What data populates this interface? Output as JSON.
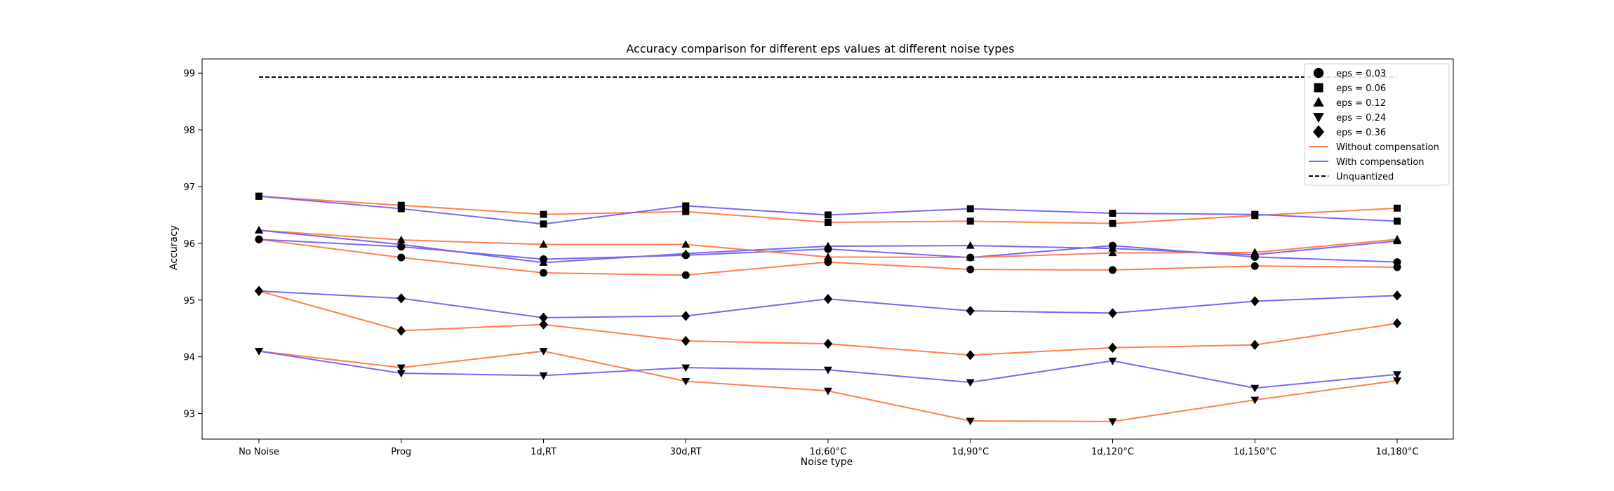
{
  "chart_data": {
    "type": "line",
    "title": "Accuracy comparison for different eps values at different noise types",
    "xlabel": "Noise type",
    "ylabel": "Accuracy",
    "categories": [
      "No Noise",
      "Prog",
      "1d,RT",
      "30d,RT",
      "1d,60°C",
      "1d,90°C",
      "1d,120°C",
      "1d,150°C",
      "1d,180°C"
    ],
    "ylim": [
      92.55,
      99.25
    ],
    "yticks": [
      "93",
      "94",
      "95",
      "96",
      "97",
      "98",
      "99"
    ],
    "legend_position": "top-right",
    "colors": {
      "without": "#ff7f50",
      "with": "#7b68ee",
      "unquantized": "#000000",
      "marker": "#000000"
    },
    "unquantized": {
      "name": "Unquantized",
      "value": 98.93
    },
    "series": [
      {
        "name": "Without compensation",
        "eps": "0.03",
        "marker": "circle",
        "values": [
          96.07,
          95.75,
          95.48,
          95.44,
          95.67,
          95.54,
          95.53,
          95.6,
          95.58
        ]
      },
      {
        "name": "With compensation",
        "eps": "0.03",
        "marker": "circle",
        "values": [
          96.07,
          95.94,
          95.72,
          95.79,
          95.9,
          95.75,
          95.96,
          95.76,
          95.67
        ]
      },
      {
        "name": "Without compensation",
        "eps": "0.06",
        "marker": "square",
        "values": [
          96.83,
          96.67,
          96.51,
          96.56,
          96.37,
          96.39,
          96.35,
          96.49,
          96.62
        ]
      },
      {
        "name": "With compensation",
        "eps": "0.06",
        "marker": "square",
        "values": [
          96.83,
          96.61,
          96.34,
          96.66,
          96.5,
          96.61,
          96.53,
          96.51,
          96.39
        ]
      },
      {
        "name": "Without compensation",
        "eps": "0.12",
        "marker": "triangle-up",
        "values": [
          96.23,
          96.06,
          95.98,
          95.98,
          95.76,
          95.75,
          95.83,
          95.84,
          96.07
        ]
      },
      {
        "name": "With compensation",
        "eps": "0.12",
        "marker": "triangle-up",
        "values": [
          96.23,
          95.98,
          95.66,
          95.82,
          95.95,
          95.96,
          95.91,
          95.8,
          96.04
        ]
      },
      {
        "name": "Without compensation",
        "eps": "0.24",
        "marker": "triangle-down",
        "values": [
          94.1,
          93.81,
          94.1,
          93.57,
          93.4,
          92.87,
          92.86,
          93.24,
          93.58
        ]
      },
      {
        "name": "With compensation",
        "eps": "0.24",
        "marker": "triangle-down",
        "values": [
          94.1,
          93.71,
          93.67,
          93.81,
          93.77,
          93.55,
          93.93,
          93.45,
          93.69
        ]
      },
      {
        "name": "Without compensation",
        "eps": "0.36",
        "marker": "diamond",
        "values": [
          95.16,
          94.46,
          94.57,
          94.28,
          94.23,
          94.03,
          94.16,
          94.21,
          94.59
        ]
      },
      {
        "name": "With compensation",
        "eps": "0.36",
        "marker": "diamond",
        "values": [
          95.16,
          95.03,
          94.69,
          94.72,
          95.02,
          94.81,
          94.77,
          94.98,
          95.08
        ]
      }
    ],
    "legend": [
      {
        "label": "eps = 0.03",
        "kind": "marker",
        "marker": "circle"
      },
      {
        "label": "eps = 0.06",
        "kind": "marker",
        "marker": "square"
      },
      {
        "label": "eps = 0.12",
        "kind": "marker",
        "marker": "triangle-up"
      },
      {
        "label": "eps = 0.24",
        "kind": "marker",
        "marker": "triangle-down"
      },
      {
        "label": "eps = 0.36",
        "kind": "marker",
        "marker": "diamond"
      },
      {
        "label": "Without compensation",
        "kind": "line",
        "color_key": "without"
      },
      {
        "label": "With compensation",
        "kind": "line",
        "color_key": "with"
      },
      {
        "label": "Unquantized",
        "kind": "dashed",
        "color_key": "unquantized"
      }
    ]
  }
}
